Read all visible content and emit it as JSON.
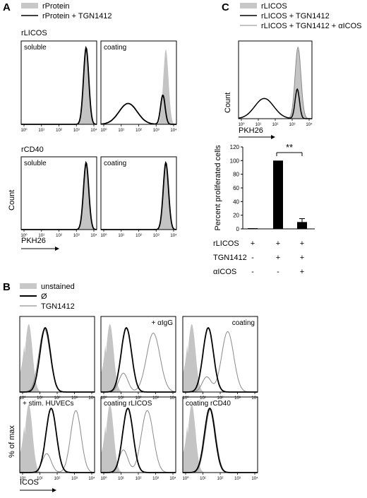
{
  "panels": {
    "A": {
      "letter": "A",
      "legend": [
        "rProtein",
        "rProtein + TGN1412"
      ],
      "row1_label": "rLICOS",
      "row2_label": "rCD40",
      "plot_labels": [
        "soluble",
        "coating",
        "soluble",
        "coating"
      ],
      "ylabel": "Count",
      "xlabel": "PKH26"
    },
    "B": {
      "letter": "B",
      "legend": [
        "unstained",
        "Ø",
        "TGN1412"
      ],
      "plot_labels": [
        "",
        "+ αIgG",
        "coating",
        "+ stim. HUVECs",
        "coating rLICOS",
        "coating rCD40"
      ],
      "ylabel": "% of max",
      "xlabel": "ICOS"
    },
    "C": {
      "letter": "C",
      "legend": [
        "rLICOS",
        "rLICOS + TGN1412",
        "rLICOS + TGN1412 + αICOS"
      ],
      "hist_ylabel": "Count",
      "hist_xlabel": "PKH26",
      "significance": "**",
      "table_rows": [
        {
          "label": "rLICOS",
          "values": [
            "+",
            "+",
            "+"
          ]
        },
        {
          "label": "TGN1412",
          "values": [
            "-",
            "+",
            "+"
          ]
        },
        {
          "label": "αICOS",
          "values": [
            "-",
            "-",
            "+"
          ]
        }
      ]
    }
  },
  "axis_tick_labels": [
    "10⁰",
    "10¹",
    "10²",
    "10³",
    "10⁴"
  ],
  "chart_data": {
    "type": "bar",
    "categories": [
      "rLICOS",
      "rLICOS + TGN1412",
      "rLICOS + TGN1412 + αICOS"
    ],
    "values": [
      1,
      100,
      10
    ],
    "errors": [
      0,
      0,
      5
    ],
    "ylabel": "Percent proliferated cells",
    "yticks": [
      0,
      20,
      40,
      60,
      80,
      100,
      120
    ],
    "ylim": [
      0,
      120
    ]
  }
}
